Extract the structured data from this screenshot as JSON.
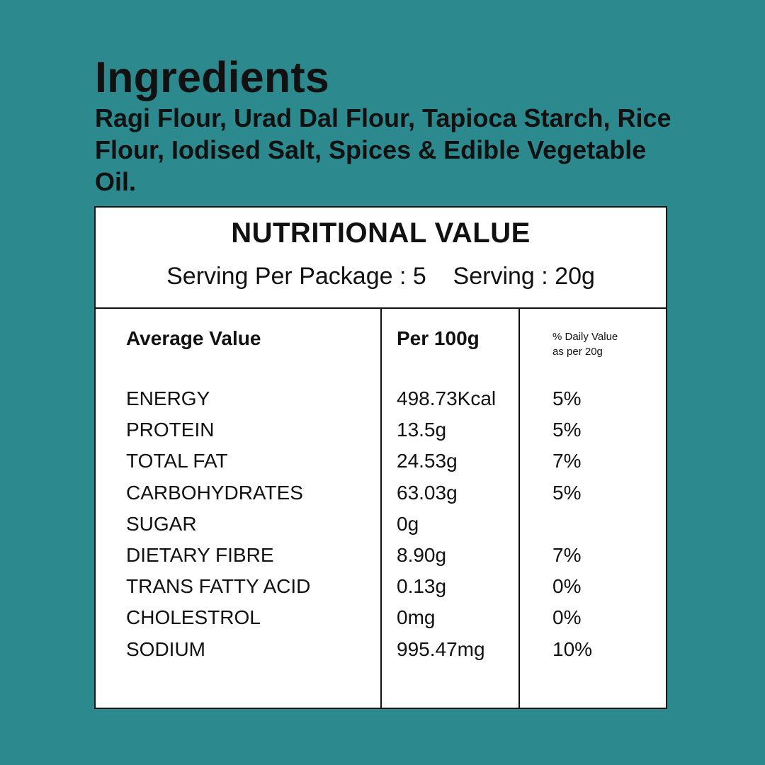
{
  "ingredients": {
    "title": "Ingredients",
    "text": "Ragi Flour, Urad Dal Flour, Tapioca Starch, Rice Flour, Iodised Salt, Spices & Edible Vegetable Oil."
  },
  "nutrition": {
    "title": "NUTRITIONAL VALUE",
    "serving_line": "Serving Per Package : 5    Serving : 20g",
    "headers": {
      "average": "Average Value",
      "per100": "Per 100g",
      "daily_line1": "% Daily Value",
      "daily_line2": "as per 20g"
    },
    "rows": [
      {
        "name": "ENERGY",
        "per100": "498.73Kcal",
        "daily": "5%"
      },
      {
        "name": "PROTEIN",
        "per100": "13.5g",
        "daily": "5%"
      },
      {
        "name": "TOTAL FAT",
        "per100": "24.53g",
        "daily": "7%"
      },
      {
        "name": "CARBOHYDRATES",
        "per100": "63.03g",
        "daily": "5%"
      },
      {
        "name": "SUGAR",
        "per100": "0g",
        "daily": ""
      },
      {
        "name": "DIETARY FIBRE",
        "per100": "8.90g",
        "daily": "7%"
      },
      {
        "name": "TRANS FATTY ACID",
        "per100": "0.13g",
        "daily": "0%"
      },
      {
        "name": "CHOLESTROL",
        "per100": "0mg",
        "daily": "0%"
      },
      {
        "name": "SODIUM",
        "per100": "995.47mg",
        "daily": "10%"
      }
    ]
  },
  "colors": {
    "background": "#2c8a8f",
    "panel": "#ffffff",
    "text": "#111111"
  }
}
